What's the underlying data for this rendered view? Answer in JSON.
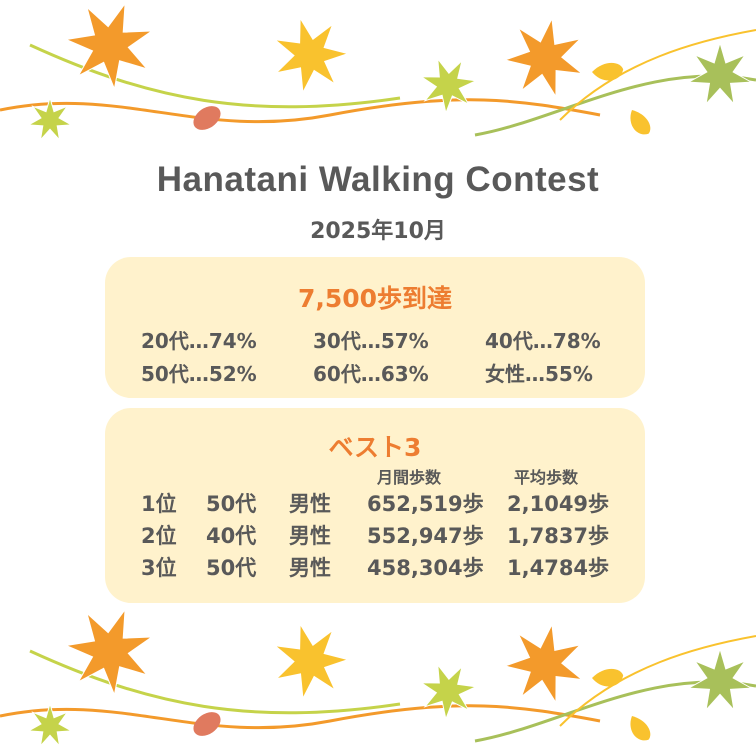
{
  "title": "Hanatani Walking Contest",
  "subtitle": "2025年10月",
  "achievement": {
    "heading": "7,500歩到達",
    "items": [
      {
        "label": "20代",
        "value": "74%"
      },
      {
        "label": "30代",
        "value": "57%"
      },
      {
        "label": "40代",
        "value": "78%"
      },
      {
        "label": "50代",
        "value": "52%"
      },
      {
        "label": "60代",
        "value": "63%"
      },
      {
        "label": "女性",
        "value": "55%"
      }
    ]
  },
  "best3": {
    "heading": "ベスト3",
    "columns": {
      "monthly": "月間歩数",
      "average": "平均歩数"
    },
    "rows": [
      {
        "rank": "1位",
        "age": "50代",
        "gender": "男性",
        "monthly": "652,519歩",
        "average": "2,1049歩"
      },
      {
        "rank": "2位",
        "age": "40代",
        "gender": "男性",
        "monthly": "552,947歩",
        "average": "1,7837歩"
      },
      {
        "rank": "3位",
        "age": "50代",
        "gender": "男性",
        "monthly": "458,304歩",
        "average": "1,4784歩"
      }
    ]
  },
  "colors": {
    "accent": "#ed7d31",
    "text": "#595959",
    "box": "#fff2cc",
    "leaf_orange": "#f39a2b",
    "leaf_yellow": "#f9c22e",
    "leaf_green": "#c5d34a",
    "leaf_olive": "#a8c05a",
    "leaf_brown": "#e07a5f"
  },
  "icons": [
    "maple-leaf-icon",
    "ginkgo-leaf-icon",
    "fallen-leaf-icon"
  ]
}
